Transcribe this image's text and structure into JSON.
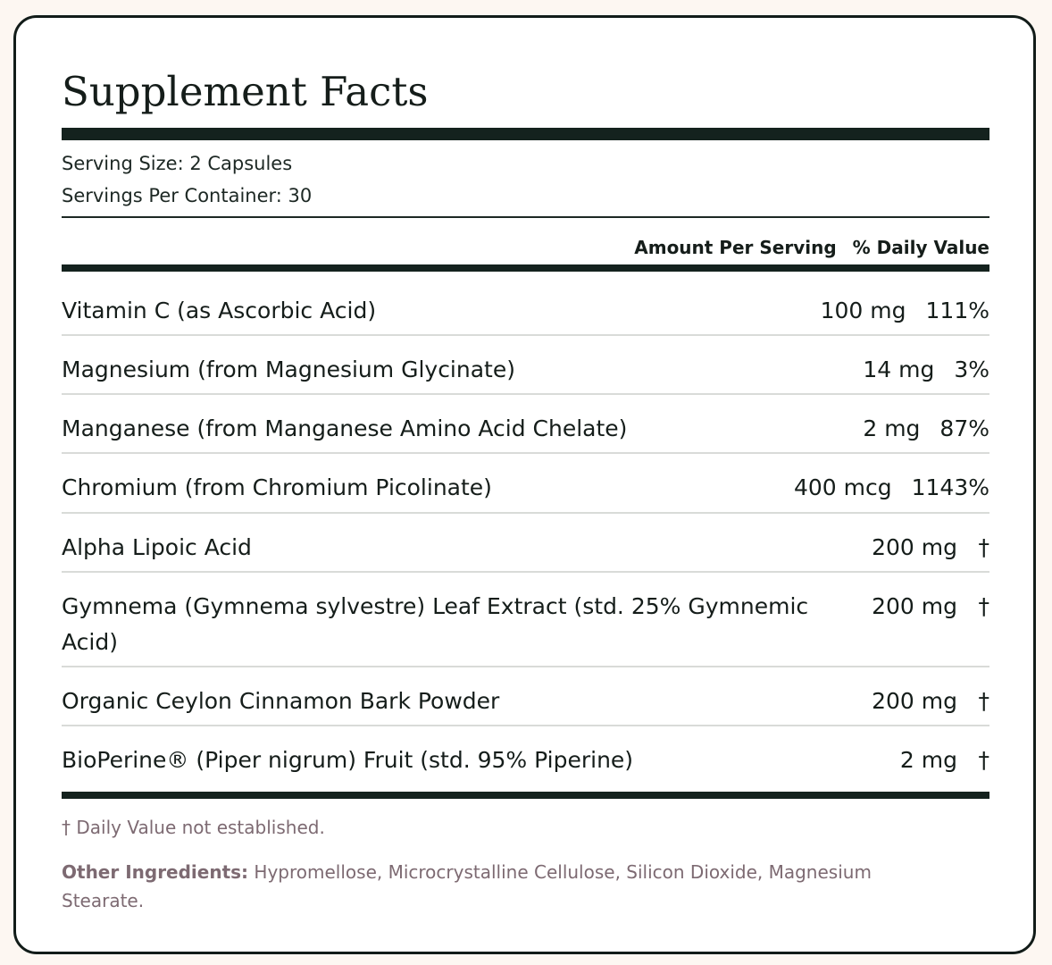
{
  "title": "Supplement Facts",
  "serving_size": "Serving Size: 2 Capsules",
  "servings_per_container": "Servings Per Container: 30",
  "columns": {
    "amount": "Amount Per Serving",
    "daily_value": "% Daily Value"
  },
  "ingredients": [
    {
      "name": "Vitamin C (as Ascorbic Acid)",
      "amount": "100 mg",
      "dv": "111%"
    },
    {
      "name": "Magnesium (from Magnesium Glycinate)",
      "amount": "14 mg",
      "dv": "3%"
    },
    {
      "name": "Manganese (from Manganese Amino Acid Chelate)",
      "amount": "2 mg",
      "dv": "87%"
    },
    {
      "name": "Chromium (from Chromium Picolinate)",
      "amount": "400 mcg",
      "dv": "1143%"
    },
    {
      "name": "Alpha Lipoic Acid",
      "amount": "200 mg",
      "dv": "†"
    },
    {
      "name": "Gymnema (Gymnema sylvestre) Leaf Extract (std. 25% Gymnemic Acid)",
      "amount": "200 mg",
      "dv": "†"
    },
    {
      "name": "Organic Ceylon Cinnamon Bark Powder",
      "amount": "200 mg",
      "dv": "†"
    },
    {
      "name": "BioPerine® (Piper nigrum) Fruit (std. 95% Piperine)",
      "amount": "2 mg",
      "dv": "†"
    }
  ],
  "footnote": "† Daily Value not established.",
  "other_ingredients": {
    "label": "Other Ingredients:",
    "text": " Hypromellose, Microcrystalline Cellulose, Silicon Dioxide, Magnesium Stearate."
  }
}
